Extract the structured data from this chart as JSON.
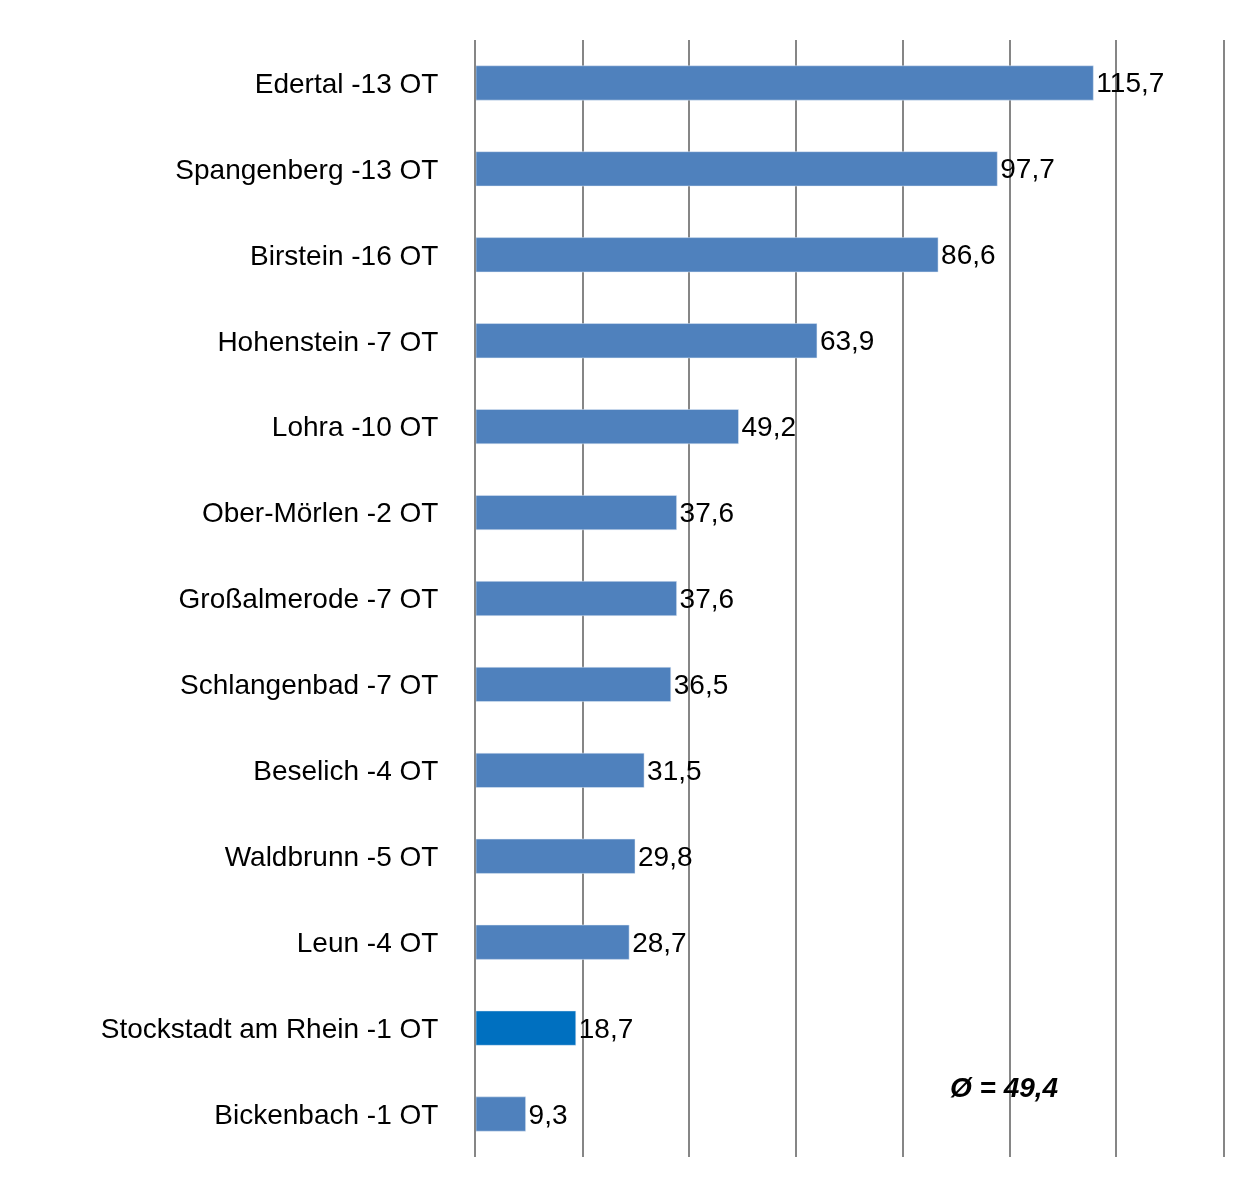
{
  "chart_data": {
    "type": "bar",
    "orientation": "horizontal",
    "categories": [
      "Edertal -13 OT",
      "Spangenberg -13 OT",
      "Birstein -16 OT",
      "Hohenstein -7 OT",
      "Lohra -10 OT",
      "Ober-Mörlen -2 OT",
      "Großalmerode -7 OT",
      "Schlangenbad -7 OT",
      "Beselich -4 OT",
      "Waldbrunn -5 OT",
      "Leun -4 OT",
      "Stockstadt am Rhein -1 OT",
      "Bickenbach -1 OT"
    ],
    "values": [
      115.7,
      97.7,
      86.6,
      63.9,
      49.2,
      37.6,
      37.6,
      36.5,
      31.5,
      29.8,
      28.7,
      18.7,
      9.3
    ],
    "value_labels": [
      "115,7",
      "97,7",
      "86,6",
      "63,9",
      "49,2",
      "37,6",
      "37,6",
      "36,5",
      "31,5",
      "29,8",
      "28,7",
      "18,7",
      "9,3"
    ],
    "colors": [
      "#4f81bd",
      "#4f81bd",
      "#4f81bd",
      "#4f81bd",
      "#4f81bd",
      "#4f81bd",
      "#4f81bd",
      "#4f81bd",
      "#4f81bd",
      "#4f81bd",
      "#4f81bd",
      "#0070c0",
      "#4f81bd"
    ],
    "xlim": [
      0,
      140
    ],
    "xticks": [
      {
        "value": 20,
        "label": null
      },
      {
        "value": 40,
        "label": null
      },
      {
        "value": 60,
        "label": null
      },
      {
        "value": 80,
        "label": null
      },
      {
        "value": 100,
        "label": null
      },
      {
        "value": 120,
        "label": null
      }
    ],
    "grid": "x",
    "tick_labels": "y",
    "legend": false,
    "annotations": [
      "Ø = 49,4"
    ]
  }
}
